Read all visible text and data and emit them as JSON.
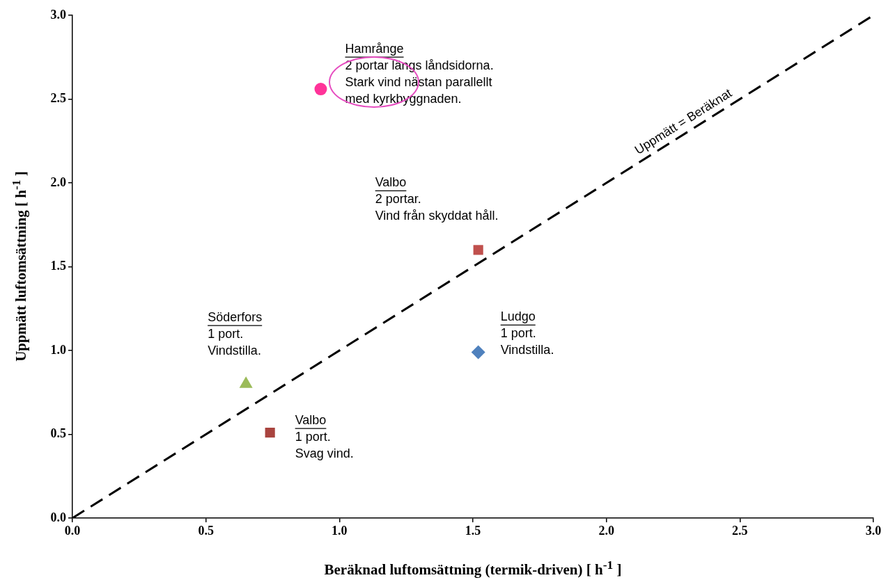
{
  "chart_data": {
    "type": "scatter",
    "xlabel": "Beräknad luftomsättning  (termik-driven)  [ h$^{-1}$ ]",
    "ylabel": "Uppmätt  luftomsättning   [ h$^{-1}$ ]",
    "xlim": [
      0,
      3
    ],
    "ylim": [
      0,
      3
    ],
    "xticks": [
      {
        "value": 0,
        "label": "0.0"
      },
      {
        "value": 0.5,
        "label": "0.5"
      },
      {
        "value": 1,
        "label": "1.0"
      },
      {
        "value": 1.5,
        "label": "1.5"
      },
      {
        "value": 2,
        "label": "2.0"
      },
      {
        "value": 2.5,
        "label": "2.5"
      },
      {
        "value": 3,
        "label": "3.0"
      }
    ],
    "yticks": [
      {
        "value": 0,
        "label": "0.0"
      },
      {
        "value": 0.5,
        "label": "0.5"
      },
      {
        "value": 1,
        "label": "1.0"
      },
      {
        "value": 1.5,
        "label": "1.5"
      },
      {
        "value": 2,
        "label": "2.0"
      },
      {
        "value": 2.5,
        "label": "2.5"
      },
      {
        "value": 3,
        "label": "3.0"
      }
    ],
    "series": [
      {
        "type": "line",
        "name": "Uppmätt = Beräknat",
        "color": "#000000",
        "x": [
          0,
          3
        ],
        "values": [
          0,
          3
        ],
        "marker": "none",
        "line_style": "dashed"
      },
      {
        "color": "#ff3399",
        "x": [
          0.93
        ],
        "values": [
          2.56
        ],
        "marker": "circle"
      },
      {
        "color": "#c0504d",
        "x": [
          1.52
        ],
        "values": [
          1.6
        ],
        "marker": "square"
      },
      {
        "color": "#4f81bd",
        "x": [
          1.52
        ],
        "values": [
          0.99
        ],
        "marker": "diamond"
      },
      {
        "color": "#9bbb59",
        "x": [
          0.65
        ],
        "values": [
          0.8
        ],
        "marker": "triangle"
      },
      {
        "color": "#a9443f",
        "x": [
          0.74
        ],
        "values": [
          0.51
        ],
        "marker": "square"
      }
    ],
    "annotations": [
      {
        "text": "Hamrånge\n2 portar längs låndsidorna.\nStark vind nästan parallellt\nmed kyrkbyggnaden.",
        "x": 0.93,
        "y": 2.56
      },
      {
        "text": "Valbo\n2 portar.\nVind från skyddat håll.",
        "x": 1.52,
        "y": 1.6
      },
      {
        "text": "Ludgo\n1 port.\nVindstilla.",
        "x": 1.52,
        "y": 0.99
      },
      {
        "text": "Söderfors\n1 port.\nVindstilla.",
        "x": 0.65,
        "y": 0.8
      },
      {
        "text": "Valbo\n1 port.\nSvag vind.",
        "x": 0.74,
        "y": 0.51
      }
    ]
  }
}
